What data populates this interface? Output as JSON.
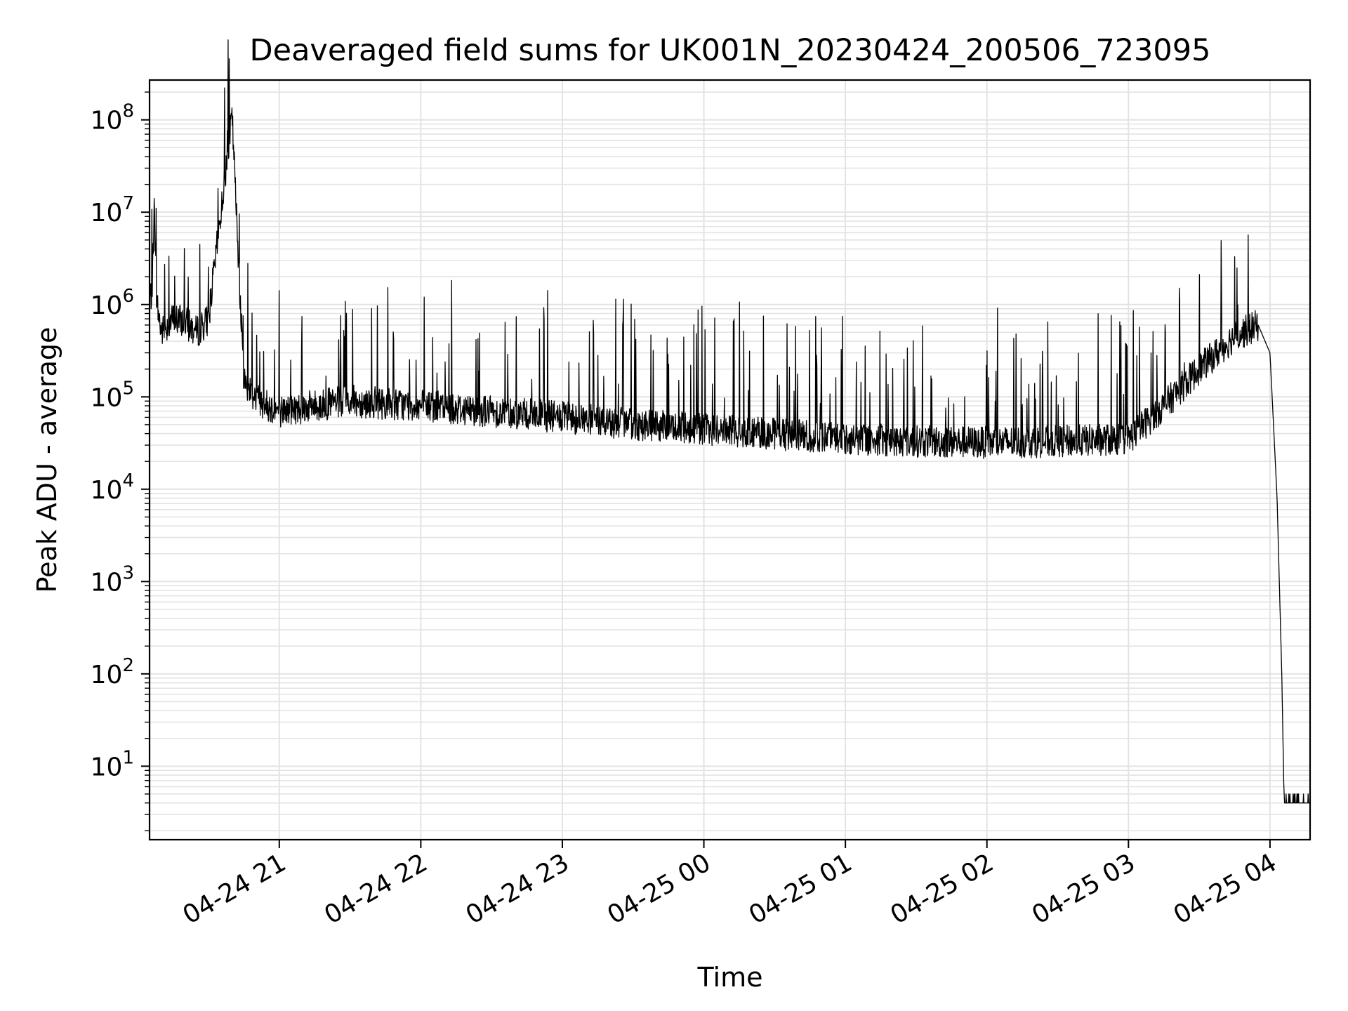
{
  "chart_data": {
    "type": "line",
    "title": "Deaveraged field sums for UK001N_20230424_200506_723095",
    "xlabel": "Time",
    "ylabel": "Peak ADU - average",
    "yscale": "log",
    "ylim": [
      1.6,
      270000000
    ],
    "xlim": [
      "2023-04-24 20:05",
      "2023-04-25 04:17"
    ],
    "grid": true,
    "line_color": "#000000",
    "grid_color": "#e3e3e3",
    "x_ticks": [
      {
        "value": "2023-04-24 21:00",
        "label": "04-24 21"
      },
      {
        "value": "2023-04-24 22:00",
        "label": "04-24 22"
      },
      {
        "value": "2023-04-24 23:00",
        "label": "04-24 23"
      },
      {
        "value": "2023-04-25 00:00",
        "label": "04-25 00"
      },
      {
        "value": "2023-04-25 01:00",
        "label": "04-25 01"
      },
      {
        "value": "2023-04-25 02:00",
        "label": "04-25 02"
      },
      {
        "value": "2023-04-25 03:00",
        "label": "04-25 03"
      },
      {
        "value": "2023-04-25 04:00",
        "label": "04-25 04"
      }
    ],
    "y_ticks": [
      {
        "value": 10,
        "base": "10",
        "exp": "1"
      },
      {
        "value": 100,
        "base": "10",
        "exp": "2"
      },
      {
        "value": 1000,
        "base": "10",
        "exp": "3"
      },
      {
        "value": 10000,
        "base": "10",
        "exp": "4"
      },
      {
        "value": 100000,
        "base": "10",
        "exp": "5"
      },
      {
        "value": 1000000,
        "base": "10",
        "exp": "6"
      },
      {
        "value": 10000000,
        "base": "10",
        "exp": "7"
      },
      {
        "value": 100000000,
        "base": "10",
        "exp": "8"
      }
    ],
    "series": [
      {
        "x": [
          "2023-04-24 20:05",
          "2023-04-24 20:06",
          "2023-04-24 20:07",
          "2023-04-24 20:08",
          "2023-04-24 20:10",
          "2023-04-24 20:15",
          "2023-04-24 20:20",
          "2023-04-24 20:25",
          "2023-04-24 20:30",
          "2023-04-24 20:40",
          "2023-04-24 20:45",
          "2023-04-24 20:50",
          "2023-04-24 20:55",
          "2023-04-24 21:00",
          "2023-04-24 21:15",
          "2023-04-24 21:30",
          "2023-04-24 22:00",
          "2023-04-24 22:30",
          "2023-04-24 23:00",
          "2023-04-24 23:30",
          "2023-04-25 00:00",
          "2023-04-25 00:30",
          "2023-04-25 01:00",
          "2023-04-25 01:30",
          "2023-04-25 02:00",
          "2023-04-25 02:30",
          "2023-04-25 03:00",
          "2023-04-25 03:15",
          "2023-04-25 03:30",
          "2023-04-25 03:45",
          "2023-04-25 03:55",
          "2023-04-25 04:00",
          "2023-04-25 04:03",
          "2023-04-25 04:05",
          "2023-04-25 04:06",
          "2023-04-25 04:07",
          "2023-04-25 04:08",
          "2023-04-25 04:17"
        ],
        "y": [
          1200000,
          1300000,
          11000000,
          1100000,
          500000,
          700000,
          650000,
          500000,
          700000,
          110000000,
          150000,
          100000,
          80000,
          70000,
          80000,
          90000,
          80000,
          70000,
          60000,
          50000,
          45000,
          40000,
          35000,
          33000,
          32000,
          33000,
          35000,
          80000,
          200000,
          450000,
          600000,
          300000,
          8000,
          100,
          4,
          4,
          4,
          4
        ]
      }
    ]
  }
}
